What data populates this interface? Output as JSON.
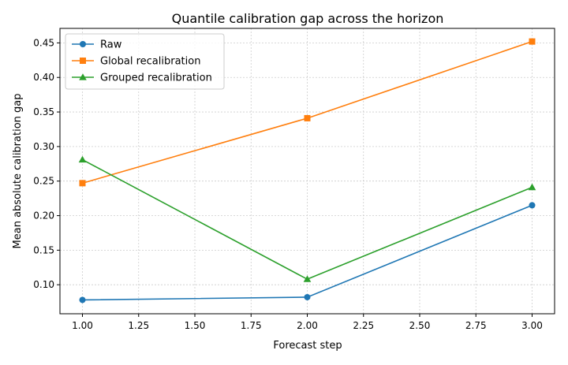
{
  "chart_data": {
    "type": "line",
    "title": "Quantile calibration gap across the horizon",
    "xlabel": "Forecast step",
    "ylabel": "Mean absolute calibration gap",
    "xlim": [
      0.9,
      3.1
    ],
    "ylim": [
      0.058,
      0.471
    ],
    "xticks": [
      1.0,
      1.25,
      1.5,
      1.75,
      2.0,
      2.25,
      2.5,
      2.75,
      3.0
    ],
    "xtick_labels": [
      "1.00",
      "1.25",
      "1.50",
      "1.75",
      "2.00",
      "2.25",
      "2.50",
      "2.75",
      "3.00"
    ],
    "yticks": [
      0.1,
      0.15,
      0.2,
      0.25,
      0.3,
      0.35,
      0.4,
      0.45
    ],
    "ytick_labels": [
      "0.10",
      "0.15",
      "0.20",
      "0.25",
      "0.30",
      "0.35",
      "0.40",
      "0.45"
    ],
    "grid": true,
    "legend_position": "top-left",
    "x": [
      1,
      2,
      3
    ],
    "series": [
      {
        "name": "Raw",
        "values": [
          0.078,
          0.082,
          0.215
        ],
        "color": "#1f77b4",
        "marker": "circle"
      },
      {
        "name": "Global recalibration",
        "values": [
          0.247,
          0.341,
          0.452
        ],
        "color": "#ff7f0e",
        "marker": "square"
      },
      {
        "name": "Grouped recalibration",
        "values": [
          0.281,
          0.108,
          0.241
        ],
        "color": "#2ca02c",
        "marker": "triangle"
      }
    ]
  }
}
